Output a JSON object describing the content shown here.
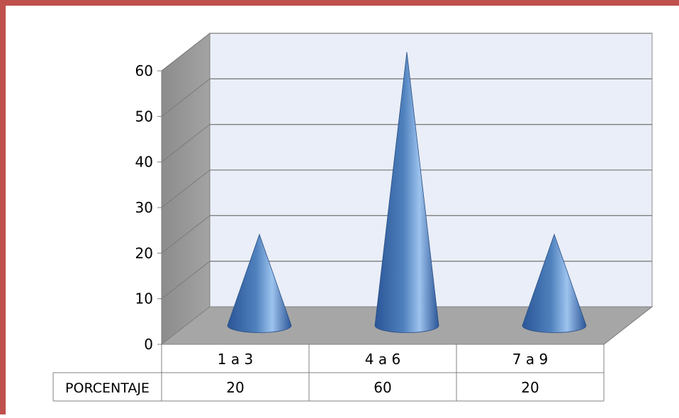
{
  "frame": {
    "border_color": "#c0504d"
  },
  "colors": {
    "back_wall": "#e9eef8",
    "side_wall": "#9a9a9a",
    "floor": "#a6a6a6",
    "gridline": "#7f7f7f",
    "cone_dark": "#2b5597",
    "cone_mid": "#4f81bd",
    "cone_light": "#9dc3ee",
    "text": "#000000"
  },
  "chart_data": {
    "type": "bar",
    "bar_shape": "cone-3d",
    "categories": [
      "1 a 3",
      "4 a 6",
      "7 a 9"
    ],
    "series": [
      {
        "name": "PORCENTAJE",
        "values": [
          20,
          60,
          20
        ]
      }
    ],
    "ylim": [
      0,
      60
    ],
    "y_ticks": [
      "0",
      "10",
      "20",
      "30",
      "40",
      "50",
      "60"
    ],
    "grid": true,
    "legend": "none",
    "data_table": {
      "row_label": "PORCENTAJE",
      "cells": [
        "20",
        "60",
        "20"
      ]
    }
  }
}
